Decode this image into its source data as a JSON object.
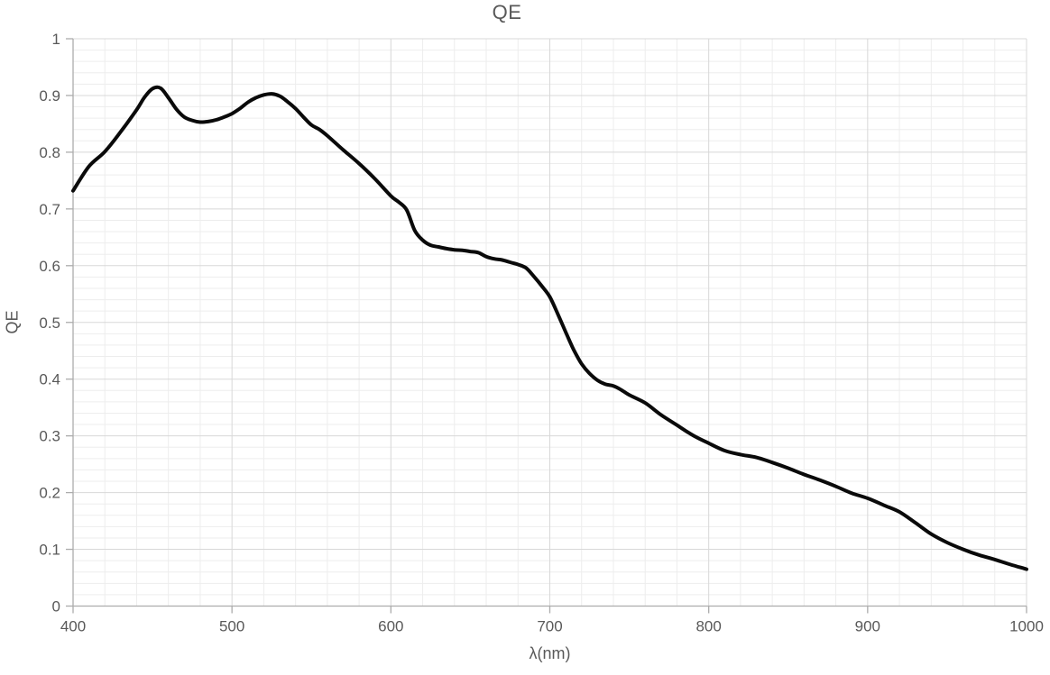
{
  "chart_data": {
    "type": "line",
    "title": "QE",
    "xlabel": "λ(nm)",
    "ylabel": "QE",
    "xlim": [
      400,
      1000
    ],
    "ylim": [
      0,
      1
    ],
    "x_major_unit": 100,
    "x_minor_unit": 20,
    "y_major_unit": 0.1,
    "y_minor_unit": 0.02,
    "grid": "major and minor gridlines on, both axes",
    "legend": "none",
    "x_tick_labels": [
      "400",
      "500",
      "600",
      "700",
      "800",
      "900",
      "1000"
    ],
    "y_tick_labels": [
      "0",
      "0.1",
      "0.2",
      "0.3",
      "0.4",
      "0.5",
      "0.6",
      "0.7",
      "0.8",
      "0.9",
      "1"
    ],
    "colors": {
      "line": "#0a0a0a",
      "label_text": "#595959",
      "axis_line": "#acacac",
      "major_grid": "#d8d8d8",
      "minor_grid": "#ededed",
      "background": "#ffffff"
    },
    "series": [
      {
        "name": "QE",
        "x": [
          400,
          410,
          420,
          430,
          440,
          445,
          450,
          455,
          460,
          465,
          470,
          475,
          480,
          485,
          490,
          495,
          500,
          505,
          510,
          515,
          520,
          525,
          530,
          535,
          540,
          545,
          550,
          555,
          560,
          570,
          580,
          590,
          600,
          605,
          610,
          615,
          620,
          625,
          630,
          635,
          640,
          645,
          650,
          655,
          660,
          665,
          670,
          675,
          680,
          685,
          690,
          695,
          700,
          705,
          710,
          715,
          720,
          725,
          730,
          735,
          740,
          745,
          750,
          760,
          770,
          780,
          790,
          800,
          810,
          820,
          830,
          840,
          850,
          860,
          870,
          880,
          890,
          900,
          910,
          920,
          930,
          940,
          950,
          960,
          970,
          980,
          990,
          1000
        ],
        "y": [
          0.732,
          0.775,
          0.801,
          0.836,
          0.875,
          0.897,
          0.912,
          0.913,
          0.896,
          0.876,
          0.862,
          0.856,
          0.853,
          0.854,
          0.857,
          0.862,
          0.868,
          0.877,
          0.888,
          0.896,
          0.901,
          0.903,
          0.899,
          0.889,
          0.877,
          0.862,
          0.848,
          0.84,
          0.829,
          0.804,
          0.78,
          0.753,
          0.723,
          0.712,
          0.698,
          0.662,
          0.645,
          0.636,
          0.633,
          0.63,
          0.628,
          0.627,
          0.625,
          0.623,
          0.616,
          0.612,
          0.61,
          0.606,
          0.602,
          0.596,
          0.581,
          0.564,
          0.545,
          0.515,
          0.483,
          0.452,
          0.427,
          0.41,
          0.398,
          0.391,
          0.388,
          0.381,
          0.372,
          0.358,
          0.337,
          0.319,
          0.301,
          0.287,
          0.274,
          0.267,
          0.262,
          0.253,
          0.243,
          0.232,
          0.222,
          0.211,
          0.199,
          0.19,
          0.178,
          0.166,
          0.147,
          0.127,
          0.112,
          0.1,
          0.09,
          0.082,
          0.073,
          0.065
        ]
      }
    ]
  }
}
